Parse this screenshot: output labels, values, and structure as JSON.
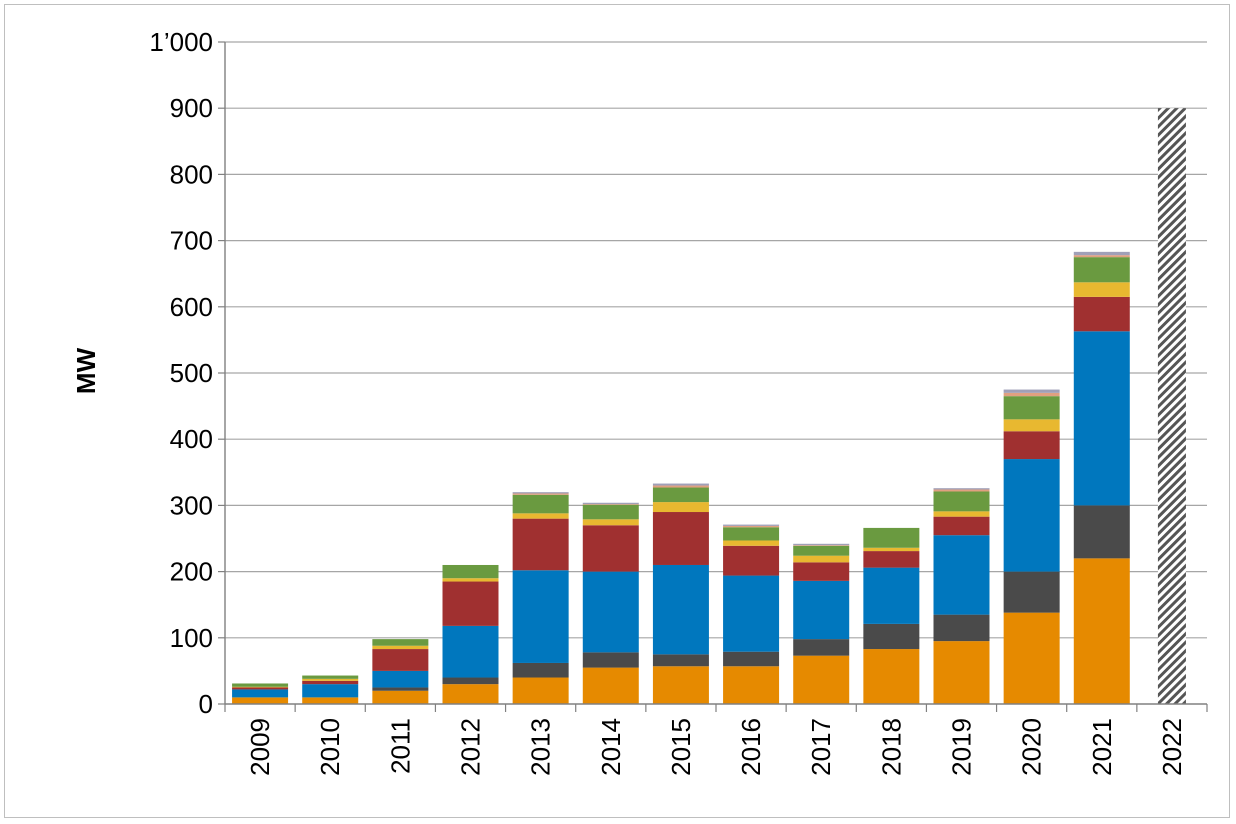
{
  "chart_data": {
    "type": "bar",
    "stacked": true,
    "title": "",
    "xlabel": "",
    "ylabel": "MW",
    "ylim": [
      0,
      1000
    ],
    "yticks": [
      "0",
      "100",
      "200",
      "300",
      "400",
      "500",
      "600",
      "700",
      "800",
      "900",
      "1’000"
    ],
    "grid": true,
    "legend": "none",
    "categories": [
      "2009",
      "2010",
      "2011",
      "2012",
      "2013",
      "2014",
      "2015",
      "2016",
      "2017",
      "2018",
      "2019",
      "2020",
      "2021",
      "2022"
    ],
    "series": [
      {
        "color": "#E68A00",
        "values": [
          10,
          10,
          20,
          30,
          40,
          55,
          57,
          57,
          73,
          83,
          95,
          138,
          220,
          0
        ]
      },
      {
        "color": "#4A4A4A",
        "values": [
          0,
          0,
          5,
          10,
          22,
          23,
          18,
          22,
          25,
          38,
          40,
          62,
          80,
          0
        ]
      },
      {
        "color": "#0077BE",
        "values": [
          12,
          20,
          25,
          78,
          140,
          122,
          135,
          115,
          88,
          85,
          120,
          170,
          263,
          0
        ]
      },
      {
        "color": "#A03030",
        "values": [
          3,
          5,
          33,
          67,
          78,
          70,
          80,
          45,
          28,
          25,
          28,
          42,
          52,
          0
        ]
      },
      {
        "color": "#E8B830",
        "values": [
          1,
          3,
          5,
          5,
          8,
          9,
          15,
          8,
          10,
          5,
          8,
          18,
          22,
          0
        ]
      },
      {
        "color": "#6A9A40",
        "values": [
          5,
          5,
          10,
          20,
          28,
          22,
          22,
          20,
          15,
          30,
          30,
          35,
          38,
          0
        ]
      },
      {
        "color": "#E0A080",
        "values": [
          0,
          0,
          0,
          0,
          2,
          1,
          3,
          2,
          1,
          0,
          3,
          5,
          3,
          0
        ]
      },
      {
        "color": "#A0A0B8",
        "values": [
          0,
          0,
          0,
          0,
          2,
          2,
          3,
          2,
          2,
          0,
          2,
          5,
          5,
          0
        ]
      }
    ],
    "forecast": {
      "category": "2022",
      "value": 900,
      "pattern": "diagonal-hatch",
      "color": "#555555"
    }
  }
}
